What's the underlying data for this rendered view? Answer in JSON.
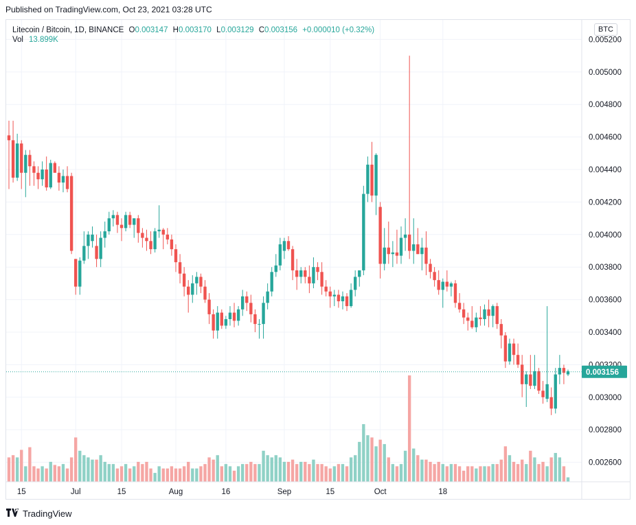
{
  "header": {
    "published": "Published on TradingView.com, Oct 23, 2021 03:28 UTC"
  },
  "legend": {
    "symbol": "Litecoin / Bitcoin, 1D, BINANCE",
    "o_label": "O",
    "o": "0.003147",
    "h_label": "H",
    "h": "0.003170",
    "l_label": "L",
    "l": "0.003129",
    "c_label": "C",
    "c": "0.003156",
    "change": "+0.000010 (+0.32%)",
    "vol_label": "Vol",
    "vol": "13.899K"
  },
  "currency_button": "BTC",
  "price_tag": "0.003156",
  "footer": {
    "brand": "TradingView",
    "logo_icon": "tradingview-logo-icon"
  },
  "colors": {
    "up": "#26a69a",
    "down": "#ef5350",
    "up_vol": "#8fd1c6",
    "down_vol": "#f5a6a4",
    "grid": "#f0f3fa",
    "axis_text": "#131722"
  },
  "chart_data": {
    "type": "candlestick",
    "title": "Litecoin / Bitcoin, 1D, BINANCE",
    "ylim": [
      0.00248,
      0.00532
    ],
    "y_ticks": [
      "0.002600",
      "0.002800",
      "0.003000",
      "0.003200",
      "0.003400",
      "0.003600",
      "0.003800",
      "0.004000",
      "0.004200",
      "0.004400",
      "0.004600",
      "0.004800",
      "0.005000",
      "0.005200"
    ],
    "x_ticks": [
      "15",
      "Jul",
      "15",
      "Aug",
      "16",
      "Sep",
      "15",
      "Oct",
      "18"
    ],
    "last_price": 0.003156,
    "candles": [
      {
        "o": 0.00461,
        "h": 0.0047,
        "l": 0.00428,
        "c": 0.00458,
        "v": 0.55
      },
      {
        "o": 0.00458,
        "h": 0.0047,
        "l": 0.00432,
        "c": 0.00435,
        "v": 0.6
      },
      {
        "o": 0.00435,
        "h": 0.00462,
        "l": 0.00433,
        "c": 0.00456,
        "v": 0.55
      },
      {
        "o": 0.00456,
        "h": 0.00458,
        "l": 0.00428,
        "c": 0.00438,
        "v": 0.72
      },
      {
        "o": 0.00438,
        "h": 0.00452,
        "l": 0.00423,
        "c": 0.00449,
        "v": 0.35
      },
      {
        "o": 0.00449,
        "h": 0.00452,
        "l": 0.0043,
        "c": 0.00442,
        "v": 0.78
      },
      {
        "o": 0.00442,
        "h": 0.00445,
        "l": 0.0043,
        "c": 0.00438,
        "v": 0.35
      },
      {
        "o": 0.00438,
        "h": 0.00442,
        "l": 0.00428,
        "c": 0.00434,
        "v": 0.3
      },
      {
        "o": 0.00434,
        "h": 0.00445,
        "l": 0.0043,
        "c": 0.0044,
        "v": 0.35
      },
      {
        "o": 0.0044,
        "h": 0.00448,
        "l": 0.00427,
        "c": 0.00429,
        "v": 0.3
      },
      {
        "o": 0.00429,
        "h": 0.00446,
        "l": 0.00428,
        "c": 0.00444,
        "v": 0.45
      },
      {
        "o": 0.00444,
        "h": 0.00445,
        "l": 0.00438,
        "c": 0.00438,
        "v": 0.38
      },
      {
        "o": 0.00438,
        "h": 0.00442,
        "l": 0.00427,
        "c": 0.00432,
        "v": 0.35
      },
      {
        "o": 0.00432,
        "h": 0.0044,
        "l": 0.00426,
        "c": 0.00436,
        "v": 0.4
      },
      {
        "o": 0.00436,
        "h": 0.00442,
        "l": 0.00426,
        "c": 0.00428,
        "v": 0.3
      },
      {
        "o": 0.00436,
        "h": 0.00438,
        "l": 0.00388,
        "c": 0.0039,
        "v": 0.55
      },
      {
        "o": 0.00385,
        "h": 0.00385,
        "l": 0.00363,
        "c": 0.00368,
        "v": 1.0
      },
      {
        "o": 0.00368,
        "h": 0.00386,
        "l": 0.00363,
        "c": 0.00384,
        "v": 0.7
      },
      {
        "o": 0.00384,
        "h": 0.00402,
        "l": 0.00382,
        "c": 0.00393,
        "v": 0.6
      },
      {
        "o": 0.00393,
        "h": 0.00402,
        "l": 0.00385,
        "c": 0.004,
        "v": 0.55
      },
      {
        "o": 0.00396,
        "h": 0.00405,
        "l": 0.00392,
        "c": 0.004,
        "v": 0.5
      },
      {
        "o": 0.00393,
        "h": 0.004,
        "l": 0.0038,
        "c": 0.00385,
        "v": 0.5
      },
      {
        "o": 0.00385,
        "h": 0.00402,
        "l": 0.0038,
        "c": 0.00398,
        "v": 0.6
      },
      {
        "o": 0.00398,
        "h": 0.00408,
        "l": 0.00392,
        "c": 0.00402,
        "v": 0.45
      },
      {
        "o": 0.00402,
        "h": 0.00414,
        "l": 0.004,
        "c": 0.0041,
        "v": 0.4
      },
      {
        "o": 0.0041,
        "h": 0.00415,
        "l": 0.00405,
        "c": 0.00412,
        "v": 0.4
      },
      {
        "o": 0.00412,
        "h": 0.00414,
        "l": 0.00401,
        "c": 0.00406,
        "v": 0.3
      },
      {
        "o": 0.00406,
        "h": 0.0041,
        "l": 0.00396,
        "c": 0.00404,
        "v": 0.35
      },
      {
        "o": 0.00404,
        "h": 0.00414,
        "l": 0.00402,
        "c": 0.00412,
        "v": 0.4
      },
      {
        "o": 0.00412,
        "h": 0.00414,
        "l": 0.00404,
        "c": 0.00406,
        "v": 0.3
      },
      {
        "o": 0.00406,
        "h": 0.0041,
        "l": 0.00398,
        "c": 0.0041,
        "v": 0.35
      },
      {
        "o": 0.0041,
        "h": 0.00412,
        "l": 0.00395,
        "c": 0.00401,
        "v": 0.45
      },
      {
        "o": 0.00401,
        "h": 0.00404,
        "l": 0.00392,
        "c": 0.00398,
        "v": 0.4
      },
      {
        "o": 0.00398,
        "h": 0.00403,
        "l": 0.0039,
        "c": 0.00396,
        "v": 0.45
      },
      {
        "o": 0.00396,
        "h": 0.00402,
        "l": 0.00388,
        "c": 0.00391,
        "v": 0.3
      },
      {
        "o": 0.00391,
        "h": 0.00404,
        "l": 0.00389,
        "c": 0.00402,
        "v": 0.2
      },
      {
        "o": 0.00402,
        "h": 0.00418,
        "l": 0.00398,
        "c": 0.00403,
        "v": 0.35
      },
      {
        "o": 0.00403,
        "h": 0.00404,
        "l": 0.00391,
        "c": 0.004,
        "v": 0.3
      },
      {
        "o": 0.004,
        "h": 0.00404,
        "l": 0.00394,
        "c": 0.00397,
        "v": 0.3
      },
      {
        "o": 0.00397,
        "h": 0.004,
        "l": 0.00387,
        "c": 0.00391,
        "v": 0.35
      },
      {
        "o": 0.00391,
        "h": 0.00394,
        "l": 0.00377,
        "c": 0.00383,
        "v": 0.3
      },
      {
        "o": 0.00383,
        "h": 0.00388,
        "l": 0.0037,
        "c": 0.00376,
        "v": 0.3
      },
      {
        "o": 0.00376,
        "h": 0.0038,
        "l": 0.00362,
        "c": 0.00368,
        "v": 0.35
      },
      {
        "o": 0.00368,
        "h": 0.00372,
        "l": 0.00352,
        "c": 0.00363,
        "v": 0.45
      },
      {
        "o": 0.00363,
        "h": 0.00375,
        "l": 0.00358,
        "c": 0.0037,
        "v": 0.3
      },
      {
        "o": 0.0037,
        "h": 0.00377,
        "l": 0.00363,
        "c": 0.00374,
        "v": 0.3
      },
      {
        "o": 0.00374,
        "h": 0.00376,
        "l": 0.00364,
        "c": 0.00368,
        "v": 0.35
      },
      {
        "o": 0.00368,
        "h": 0.00372,
        "l": 0.00358,
        "c": 0.0036,
        "v": 0.4
      },
      {
        "o": 0.0036,
        "h": 0.00364,
        "l": 0.00345,
        "c": 0.00351,
        "v": 0.55
      },
      {
        "o": 0.00351,
        "h": 0.00354,
        "l": 0.00336,
        "c": 0.00341,
        "v": 0.5
      },
      {
        "o": 0.00341,
        "h": 0.00356,
        "l": 0.00336,
        "c": 0.00352,
        "v": 0.6
      },
      {
        "o": 0.00352,
        "h": 0.00354,
        "l": 0.00342,
        "c": 0.00344,
        "v": 0.35
      },
      {
        "o": 0.00344,
        "h": 0.0035,
        "l": 0.00342,
        "c": 0.00348,
        "v": 0.4
      },
      {
        "o": 0.00348,
        "h": 0.00356,
        "l": 0.00344,
        "c": 0.00352,
        "v": 0.35
      },
      {
        "o": 0.00352,
        "h": 0.00358,
        "l": 0.00343,
        "c": 0.00347,
        "v": 0.25
      },
      {
        "o": 0.00347,
        "h": 0.00356,
        "l": 0.00344,
        "c": 0.00354,
        "v": 0.35
      },
      {
        "o": 0.00354,
        "h": 0.00366,
        "l": 0.0035,
        "c": 0.00362,
        "v": 0.4
      },
      {
        "o": 0.00362,
        "h": 0.00365,
        "l": 0.00353,
        "c": 0.00358,
        "v": 0.4
      },
      {
        "o": 0.00358,
        "h": 0.00363,
        "l": 0.00346,
        "c": 0.00351,
        "v": 0.45
      },
      {
        "o": 0.00351,
        "h": 0.00354,
        "l": 0.0034,
        "c": 0.00345,
        "v": 0.4
      },
      {
        "o": 0.00345,
        "h": 0.00348,
        "l": 0.00336,
        "c": 0.00345,
        "v": 0.4
      },
      {
        "o": 0.00345,
        "h": 0.00362,
        "l": 0.00336,
        "c": 0.00358,
        "v": 0.7
      },
      {
        "o": 0.00358,
        "h": 0.0037,
        "l": 0.00354,
        "c": 0.00365,
        "v": 0.6
      },
      {
        "o": 0.00365,
        "h": 0.0038,
        "l": 0.00362,
        "c": 0.00377,
        "v": 0.55
      },
      {
        "o": 0.00377,
        "h": 0.00388,
        "l": 0.00374,
        "c": 0.00381,
        "v": 0.6
      },
      {
        "o": 0.00381,
        "h": 0.00398,
        "l": 0.00378,
        "c": 0.00394,
        "v": 0.55
      },
      {
        "o": 0.0039,
        "h": 0.00398,
        "l": 0.00385,
        "c": 0.00396,
        "v": 0.45
      },
      {
        "o": 0.00396,
        "h": 0.00399,
        "l": 0.0039,
        "c": 0.00391,
        "v": 0.45
      },
      {
        "o": 0.00391,
        "h": 0.00393,
        "l": 0.00372,
        "c": 0.00378,
        "v": 0.5
      },
      {
        "o": 0.00378,
        "h": 0.00385,
        "l": 0.00366,
        "c": 0.00374,
        "v": 0.4
      },
      {
        "o": 0.00374,
        "h": 0.0038,
        "l": 0.0037,
        "c": 0.00378,
        "v": 0.45
      },
      {
        "o": 0.00378,
        "h": 0.0038,
        "l": 0.0037,
        "c": 0.00374,
        "v": 0.45
      },
      {
        "o": 0.00374,
        "h": 0.00381,
        "l": 0.00364,
        "c": 0.0037,
        "v": 0.4
      },
      {
        "o": 0.0037,
        "h": 0.00386,
        "l": 0.00367,
        "c": 0.0038,
        "v": 0.5
      },
      {
        "o": 0.0038,
        "h": 0.00383,
        "l": 0.00372,
        "c": 0.00377,
        "v": 0.4
      },
      {
        "o": 0.00377,
        "h": 0.00383,
        "l": 0.00363,
        "c": 0.00368,
        "v": 0.4
      },
      {
        "o": 0.00368,
        "h": 0.00372,
        "l": 0.00362,
        "c": 0.00365,
        "v": 0.35
      },
      {
        "o": 0.00365,
        "h": 0.00368,
        "l": 0.00355,
        "c": 0.00362,
        "v": 0.3
      },
      {
        "o": 0.00362,
        "h": 0.00366,
        "l": 0.00356,
        "c": 0.00363,
        "v": 0.35
      },
      {
        "o": 0.00363,
        "h": 0.00366,
        "l": 0.00355,
        "c": 0.00359,
        "v": 0.4
      },
      {
        "o": 0.00359,
        "h": 0.00365,
        "l": 0.00354,
        "c": 0.00362,
        "v": 0.4
      },
      {
        "o": 0.00362,
        "h": 0.00364,
        "l": 0.00353,
        "c": 0.00356,
        "v": 0.35
      },
      {
        "o": 0.00356,
        "h": 0.0037,
        "l": 0.00355,
        "c": 0.00366,
        "v": 0.55
      },
      {
        "o": 0.00366,
        "h": 0.00378,
        "l": 0.00362,
        "c": 0.00374,
        "v": 0.6
      },
      {
        "o": 0.00374,
        "h": 0.00378,
        "l": 0.00368,
        "c": 0.00378,
        "v": 0.9
      },
      {
        "o": 0.00378,
        "h": 0.0043,
        "l": 0.00375,
        "c": 0.00425,
        "v": 1.3
      },
      {
        "o": 0.00425,
        "h": 0.00448,
        "l": 0.0042,
        "c": 0.00443,
        "v": 1.05
      },
      {
        "o": 0.00443,
        "h": 0.00457,
        "l": 0.0042,
        "c": 0.00424,
        "v": 1.0
      },
      {
        "o": 0.00424,
        "h": 0.0045,
        "l": 0.00412,
        "c": 0.00449,
        "v": 0.8
      },
      {
        "o": 0.00417,
        "h": 0.0042,
        "l": 0.00373,
        "c": 0.00382,
        "v": 0.95
      },
      {
        "o": 0.00382,
        "h": 0.00404,
        "l": 0.00378,
        "c": 0.00392,
        "v": 0.85
      },
      {
        "o": 0.00392,
        "h": 0.00408,
        "l": 0.00382,
        "c": 0.00388,
        "v": 0.55
      },
      {
        "o": 0.00388,
        "h": 0.00396,
        "l": 0.0038,
        "c": 0.00389,
        "v": 0.4
      },
      {
        "o": 0.00389,
        "h": 0.00403,
        "l": 0.00382,
        "c": 0.00387,
        "v": 0.35
      },
      {
        "o": 0.00387,
        "h": 0.00405,
        "l": 0.00382,
        "c": 0.00398,
        "v": 0.4
      },
      {
        "o": 0.00398,
        "h": 0.0041,
        "l": 0.0039,
        "c": 0.004,
        "v": 0.7
      },
      {
        "o": 0.004,
        "h": 0.0051,
        "l": 0.00385,
        "c": 0.0039,
        "v": 2.4
      },
      {
        "o": 0.0039,
        "h": 0.0041,
        "l": 0.00382,
        "c": 0.00394,
        "v": 0.75
      },
      {
        "o": 0.00394,
        "h": 0.00404,
        "l": 0.00388,
        "c": 0.00388,
        "v": 0.6
      },
      {
        "o": 0.00388,
        "h": 0.00398,
        "l": 0.00378,
        "c": 0.00392,
        "v": 0.5
      },
      {
        "o": 0.00392,
        "h": 0.00402,
        "l": 0.00375,
        "c": 0.00382,
        "v": 0.5
      },
      {
        "o": 0.00382,
        "h": 0.00385,
        "l": 0.00373,
        "c": 0.00377,
        "v": 0.45
      },
      {
        "o": 0.00377,
        "h": 0.0038,
        "l": 0.00368,
        "c": 0.00372,
        "v": 0.4
      },
      {
        "o": 0.00372,
        "h": 0.00378,
        "l": 0.00363,
        "c": 0.00366,
        "v": 0.45
      },
      {
        "o": 0.00366,
        "h": 0.00373,
        "l": 0.00355,
        "c": 0.00371,
        "v": 0.4
      },
      {
        "o": 0.00371,
        "h": 0.00378,
        "l": 0.00365,
        "c": 0.00368,
        "v": 0.35
      },
      {
        "o": 0.00368,
        "h": 0.00371,
        "l": 0.00362,
        "c": 0.0037,
        "v": 0.4
      },
      {
        "o": 0.0037,
        "h": 0.00372,
        "l": 0.00355,
        "c": 0.00358,
        "v": 0.4
      },
      {
        "o": 0.00358,
        "h": 0.00364,
        "l": 0.00352,
        "c": 0.00354,
        "v": 0.35
      },
      {
        "o": 0.00354,
        "h": 0.00358,
        "l": 0.00345,
        "c": 0.00349,
        "v": 0.25
      },
      {
        "o": 0.00349,
        "h": 0.00352,
        "l": 0.00341,
        "c": 0.00347,
        "v": 0.35
      },
      {
        "o": 0.00347,
        "h": 0.00356,
        "l": 0.00342,
        "c": 0.00343,
        "v": 0.35
      },
      {
        "o": 0.00343,
        "h": 0.00352,
        "l": 0.0034,
        "c": 0.00349,
        "v": 0.3
      },
      {
        "o": 0.00349,
        "h": 0.00356,
        "l": 0.00344,
        "c": 0.00348,
        "v": 0.35
      },
      {
        "o": 0.00348,
        "h": 0.00357,
        "l": 0.00344,
        "c": 0.00354,
        "v": 0.35
      },
      {
        "o": 0.00354,
        "h": 0.0036,
        "l": 0.00343,
        "c": 0.0035,
        "v": 0.35
      },
      {
        "o": 0.0035,
        "h": 0.00357,
        "l": 0.00343,
        "c": 0.00356,
        "v": 0.4
      },
      {
        "o": 0.00356,
        "h": 0.00358,
        "l": 0.00342,
        "c": 0.00345,
        "v": 0.4
      },
      {
        "o": 0.00345,
        "h": 0.00348,
        "l": 0.0033,
        "c": 0.00338,
        "v": 0.5
      },
      {
        "o": 0.00338,
        "h": 0.0034,
        "l": 0.00318,
        "c": 0.00322,
        "v": 0.8
      },
      {
        "o": 0.00322,
        "h": 0.00336,
        "l": 0.0032,
        "c": 0.00333,
        "v": 0.6
      },
      {
        "o": 0.00333,
        "h": 0.00336,
        "l": 0.0032,
        "c": 0.00326,
        "v": 0.45
      },
      {
        "o": 0.00326,
        "h": 0.00333,
        "l": 0.00318,
        "c": 0.0032,
        "v": 0.4
      },
      {
        "o": 0.0032,
        "h": 0.00326,
        "l": 0.003,
        "c": 0.00308,
        "v": 0.5
      },
      {
        "o": 0.00308,
        "h": 0.00316,
        "l": 0.00294,
        "c": 0.00314,
        "v": 0.4
      },
      {
        "o": 0.00314,
        "h": 0.00326,
        "l": 0.00305,
        "c": 0.00307,
        "v": 0.7
      },
      {
        "o": 0.00307,
        "h": 0.00326,
        "l": 0.00305,
        "c": 0.00316,
        "v": 0.55
      },
      {
        "o": 0.00316,
        "h": 0.00318,
        "l": 0.00302,
        "c": 0.00304,
        "v": 0.4
      },
      {
        "o": 0.00304,
        "h": 0.0031,
        "l": 0.00296,
        "c": 0.003,
        "v": 0.45
      },
      {
        "o": 0.00299,
        "h": 0.00356,
        "l": 0.00297,
        "c": 0.00308,
        "v": 0.35
      },
      {
        "o": 0.003,
        "h": 0.00306,
        "l": 0.00289,
        "c": 0.00293,
        "v": 0.55
      },
      {
        "o": 0.00293,
        "h": 0.00318,
        "l": 0.0029,
        "c": 0.00314,
        "v": 0.65
      },
      {
        "o": 0.00314,
        "h": 0.00326,
        "l": 0.00308,
        "c": 0.00318,
        "v": 0.55
      },
      {
        "o": 0.00318,
        "h": 0.0032,
        "l": 0.00308,
        "c": 0.00315,
        "v": 0.35
      },
      {
        "o": 0.00314,
        "h": 0.00317,
        "l": 0.00313,
        "c": 0.00316,
        "v": 0.1
      }
    ]
  }
}
